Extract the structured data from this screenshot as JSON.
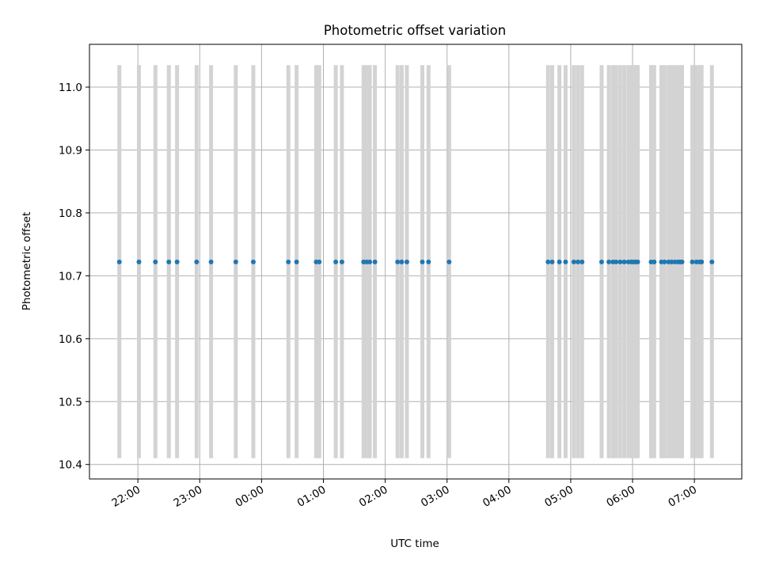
{
  "chart_data": {
    "type": "scatter",
    "title": "Photometric offset variation",
    "xlabel": "UTC time",
    "ylabel": "Photometric offset",
    "x_axis": {
      "kind": "time",
      "min": "21:13",
      "max": "07:46",
      "ticks": [
        "22:00",
        "23:00",
        "00:00",
        "01:00",
        "02:00",
        "03:00",
        "04:00",
        "05:00",
        "06:00",
        "07:00"
      ]
    },
    "y_axis": {
      "min": 10.377,
      "max": 11.068,
      "ticks": [
        "10.4",
        "10.5",
        "10.6",
        "10.7",
        "10.8",
        "10.9",
        "11.0"
      ]
    },
    "grid": true,
    "colors": {
      "points": "#1f77b4",
      "error_bars": "#d3d3d3",
      "grid": "#b0b0b0",
      "axes": "#000000"
    },
    "error_bar_range": [
      10.41,
      11.035
    ],
    "points": [
      {
        "x": "21:42",
        "y": 10.722
      },
      {
        "x": "22:01",
        "y": 10.722
      },
      {
        "x": "22:17",
        "y": 10.722
      },
      {
        "x": "22:30",
        "y": 10.722
      },
      {
        "x": "22:38",
        "y": 10.722
      },
      {
        "x": "22:57",
        "y": 10.722
      },
      {
        "x": "23:11",
        "y": 10.722
      },
      {
        "x": "23:35",
        "y": 10.722
      },
      {
        "x": "23:52",
        "y": 10.722
      },
      {
        "x": "00:26",
        "y": 10.722
      },
      {
        "x": "00:34",
        "y": 10.722
      },
      {
        "x": "00:53",
        "y": 10.722
      },
      {
        "x": "00:56",
        "y": 10.722
      },
      {
        "x": "01:12",
        "y": 10.722
      },
      {
        "x": "01:18",
        "y": 10.722
      },
      {
        "x": "01:39",
        "y": 10.722
      },
      {
        "x": "01:42",
        "y": 10.722
      },
      {
        "x": "01:45",
        "y": 10.722
      },
      {
        "x": "01:50",
        "y": 10.722
      },
      {
        "x": "02:12",
        "y": 10.722
      },
      {
        "x": "02:16",
        "y": 10.722
      },
      {
        "x": "02:21",
        "y": 10.722
      },
      {
        "x": "02:36",
        "y": 10.722
      },
      {
        "x": "02:42",
        "y": 10.722
      },
      {
        "x": "03:02",
        "y": 10.722
      },
      {
        "x": "04:38",
        "y": 10.722
      },
      {
        "x": "04:42",
        "y": 10.722
      },
      {
        "x": "04:49",
        "y": 10.722
      },
      {
        "x": "04:55",
        "y": 10.722
      },
      {
        "x": "05:03",
        "y": 10.722
      },
      {
        "x": "05:07",
        "y": 10.722
      },
      {
        "x": "05:11",
        "y": 10.722
      },
      {
        "x": "05:30",
        "y": 10.722
      },
      {
        "x": "05:37",
        "y": 10.722
      },
      {
        "x": "05:41",
        "y": 10.722
      },
      {
        "x": "05:44",
        "y": 10.722
      },
      {
        "x": "05:48",
        "y": 10.722
      },
      {
        "x": "05:52",
        "y": 10.722
      },
      {
        "x": "05:56",
        "y": 10.722
      },
      {
        "x": "05:59",
        "y": 10.722
      },
      {
        "x": "06:01",
        "y": 10.722
      },
      {
        "x": "06:03",
        "y": 10.722
      },
      {
        "x": "06:05",
        "y": 10.722
      },
      {
        "x": "06:18",
        "y": 10.722
      },
      {
        "x": "06:21",
        "y": 10.722
      },
      {
        "x": "06:28",
        "y": 10.722
      },
      {
        "x": "06:31",
        "y": 10.722
      },
      {
        "x": "06:35",
        "y": 10.722
      },
      {
        "x": "06:38",
        "y": 10.722
      },
      {
        "x": "06:41",
        "y": 10.722
      },
      {
        "x": "06:44",
        "y": 10.722
      },
      {
        "x": "06:46",
        "y": 10.722
      },
      {
        "x": "06:48",
        "y": 10.722
      },
      {
        "x": "06:58",
        "y": 10.722
      },
      {
        "x": "07:02",
        "y": 10.722
      },
      {
        "x": "07:05",
        "y": 10.722
      },
      {
        "x": "07:07",
        "y": 10.722
      },
      {
        "x": "07:17",
        "y": 10.722
      }
    ]
  }
}
